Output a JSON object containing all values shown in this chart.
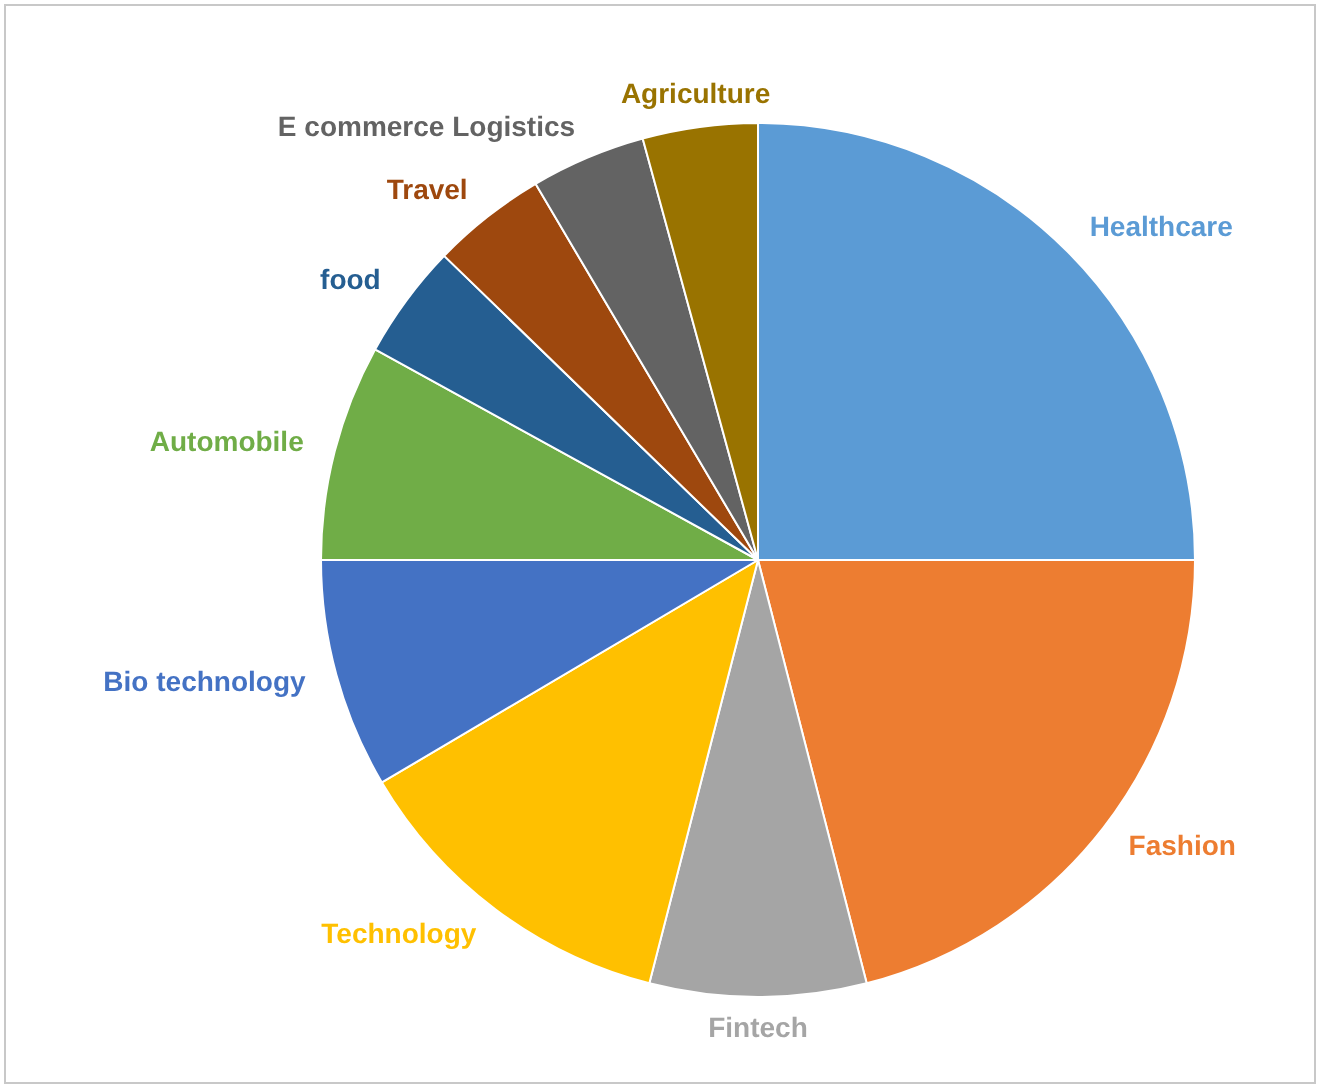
{
  "chart_data": {
    "type": "pie",
    "categories": [
      "Healthcare",
      "Fashion",
      "Fintech",
      "Technology",
      "Bio technology",
      "Automobile",
      "food",
      "Travel",
      "E commerce Logistics",
      "Agriculture"
    ],
    "values": [
      25,
      21,
      8,
      12.5,
      8.5,
      8,
      4.25,
      4.25,
      4.25,
      4.25
    ],
    "colors": [
      "#5b9bd5",
      "#ed7d31",
      "#a5a5a5",
      "#ffc000",
      "#4472c4",
      "#70ad47",
      "#255e91",
      "#9e480e",
      "#636363",
      "#997300"
    ],
    "legend": false
  }
}
